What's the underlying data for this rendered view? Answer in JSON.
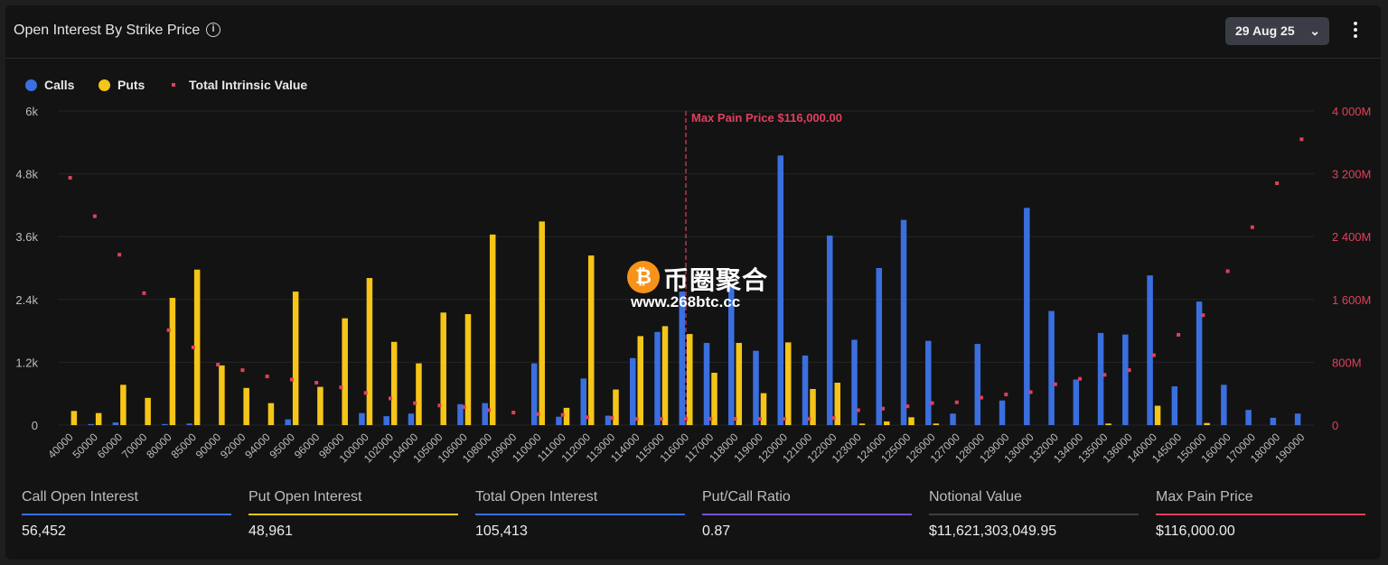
{
  "header": {
    "title": "Open Interest By Strike Price",
    "info_icon": "info-icon",
    "date": "29 Aug 25",
    "chevron_icon": "chevron-down-icon",
    "menu_icon": "more-vertical-icon"
  },
  "colors": {
    "calls": "#3b6fe0",
    "puts": "#f5c518",
    "intrinsic": "#e0405a",
    "pcr": "#7b4fd6"
  },
  "legend": {
    "calls": "Calls",
    "puts": "Puts",
    "intrinsic": "Total Intrinsic Value"
  },
  "watermark": {
    "text": "币圈聚合",
    "url": "www.268btc.cc",
    "coin_glyph": "₿"
  },
  "chart_data": {
    "type": "bar",
    "categories": [
      "40000",
      "50000",
      "60000",
      "70000",
      "80000",
      "85000",
      "90000",
      "92000",
      "94000",
      "95000",
      "96000",
      "98000",
      "100000",
      "102000",
      "104000",
      "105000",
      "106000",
      "108000",
      "109000",
      "110000",
      "111000",
      "112000",
      "113000",
      "114000",
      "115000",
      "116000",
      "117000",
      "118000",
      "119000",
      "120000",
      "121000",
      "122000",
      "123000",
      "124000",
      "125000",
      "126000",
      "127000",
      "128000",
      "129000",
      "130000",
      "132000",
      "134000",
      "135000",
      "136000",
      "140000",
      "145000",
      "150000",
      "160000",
      "170000",
      "180000",
      "190000"
    ],
    "series": [
      {
        "name": "Calls",
        "axis": "left",
        "values": [
          0,
          20,
          50,
          0,
          20,
          30,
          0,
          0,
          0,
          110,
          0,
          0,
          230,
          170,
          220,
          0,
          400,
          420,
          0,
          1180,
          160,
          890,
          180,
          1280,
          1780,
          2550,
          1570,
          2700,
          1420,
          5150,
          1330,
          3620,
          1630,
          3000,
          3920,
          1610,
          220,
          1550,
          470,
          4150,
          2180,
          870,
          1760,
          1730,
          2860,
          740,
          2360,
          770,
          290,
          140,
          220
        ]
      },
      {
        "name": "Puts",
        "axis": "left",
        "values": [
          270,
          230,
          770,
          520,
          2430,
          2970,
          1140,
          710,
          420,
          2550,
          730,
          2040,
          2810,
          1590,
          1180,
          2150,
          2120,
          3640,
          0,
          3890,
          330,
          3240,
          680,
          1700,
          1890,
          1740,
          1000,
          1570,
          610,
          1580,
          690,
          810,
          30,
          70,
          150,
          30,
          0,
          0,
          0,
          0,
          0,
          0,
          30,
          0,
          370,
          0,
          40,
          0,
          0,
          0,
          0
        ]
      },
      {
        "name": "Total Intrinsic Value",
        "axis": "right",
        "type": "scatter",
        "values": [
          3150,
          2660,
          2170,
          1680,
          1210,
          990,
          770,
          700,
          620,
          580,
          540,
          480,
          410,
          340,
          280,
          250,
          230,
          190,
          160,
          140,
          130,
          100,
          90,
          80,
          80,
          80,
          80,
          80,
          80,
          80,
          80,
          90,
          190,
          210,
          240,
          280,
          290,
          350,
          390,
          420,
          520,
          590,
          640,
          700,
          890,
          1150,
          1400,
          1960,
          2520,
          3080,
          3640
        ]
      }
    ],
    "ylim": [
      0,
      6000
    ],
    "yticks": [
      0,
      1200,
      2400,
      3600,
      4800,
      6000
    ],
    "ytick_labels": [
      "0",
      "1.2k",
      "2.4k",
      "3.6k",
      "4.8k",
      "6k"
    ],
    "y2lim_millions": [
      0,
      4000
    ],
    "y2ticks_millions": [
      0,
      800,
      1600,
      2400,
      3200,
      4000
    ],
    "y2tick_labels": [
      "0",
      "800M",
      "1 600M",
      "2 400M",
      "3 200M",
      "4 000M"
    ],
    "max_pain_strike": "116000",
    "max_pain_label": "Max Pain Price $116,000.00",
    "grid": true,
    "legend_position": "top-left"
  },
  "stats": [
    {
      "label": "Call Open Interest",
      "value": "56,452",
      "color": "#3b6fe0"
    },
    {
      "label": "Put Open Interest",
      "value": "48,961",
      "color": "#f5c518"
    },
    {
      "label": "Total Open Interest",
      "value": "105,413",
      "color": "#3b6fe0"
    },
    {
      "label": "Put/Call Ratio",
      "value": "0.87",
      "color": "#7b4fd6"
    },
    {
      "label": "Notional Value",
      "value": "$11,621,303,049.95",
      "color": "#3d3d3d"
    },
    {
      "label": "Max Pain Price",
      "value": "$116,000.00",
      "color": "#e0405a"
    }
  ]
}
